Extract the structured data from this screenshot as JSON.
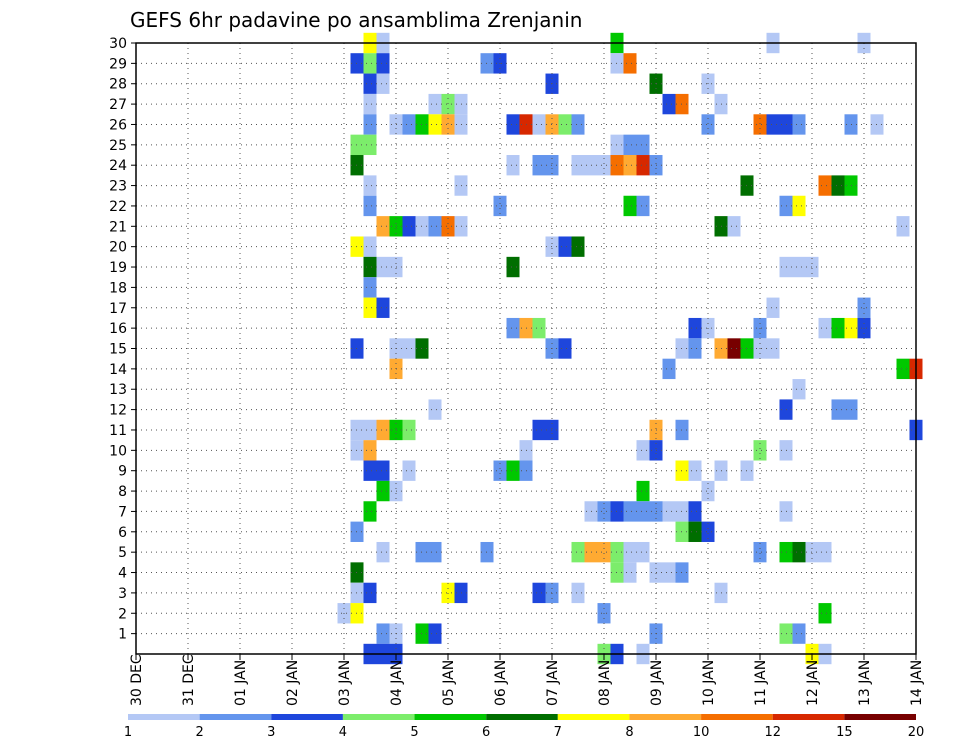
{
  "chart_data": {
    "type": "heatmap",
    "title": "GEFS 6hr padavine po ansamblima Zrenjanin",
    "xlabel": "",
    "ylabel": "",
    "x_tick_labels": [
      "30 DEC",
      "31 DEC",
      "01 JAN",
      "02 JAN",
      "03 JAN",
      "04 JAN",
      "05 JAN",
      "06 JAN",
      "07 JAN",
      "08 JAN",
      "09 JAN",
      "10 JAN",
      "11 JAN",
      "12 JAN",
      "13 JAN",
      "14 JAN"
    ],
    "y_tick_labels": [
      "1",
      "2",
      "3",
      "4",
      "5",
      "6",
      "7",
      "8",
      "9",
      "10",
      "11",
      "12",
      "13",
      "14",
      "15",
      "16",
      "17",
      "18",
      "19",
      "20",
      "21",
      "22",
      "23",
      "24",
      "25",
      "26",
      "27",
      "28",
      "29",
      "30"
    ],
    "x_range": [
      0,
      60
    ],
    "y_range": [
      0,
      30
    ],
    "x_unit": "6h step from 30 DEC 00Z",
    "grid": true,
    "legend": {
      "placement": "bottom",
      "levels": [
        "1",
        "2",
        "3",
        "4",
        "5",
        "6",
        "7",
        "8",
        "10",
        "12",
        "15",
        "20"
      ],
      "colors": [
        "#b4c8f5",
        "#6495ed",
        "#1e46dc",
        "#7ced6b",
        "#00c800",
        "#006e00",
        "#ffff00",
        "#ffaa32",
        "#f56e00",
        "#d72800",
        "#780000"
      ]
    },
    "cells_format": "[x_step, member, class_index]",
    "cells": [
      [
        18,
        30,
        6
      ],
      [
        19,
        30,
        0
      ],
      [
        37,
        30,
        4
      ],
      [
        49,
        30,
        0
      ],
      [
        56,
        30,
        0
      ],
      [
        17,
        29,
        2
      ],
      [
        18,
        29,
        3
      ],
      [
        19,
        29,
        2
      ],
      [
        27,
        29,
        1
      ],
      [
        28,
        29,
        2
      ],
      [
        37,
        29,
        0
      ],
      [
        38,
        29,
        8
      ],
      [
        18,
        28,
        2
      ],
      [
        19,
        28,
        0
      ],
      [
        32,
        28,
        2
      ],
      [
        40,
        28,
        5
      ],
      [
        44,
        28,
        0
      ],
      [
        18,
        27,
        0
      ],
      [
        23,
        27,
        0
      ],
      [
        24,
        27,
        3
      ],
      [
        25,
        27,
        0
      ],
      [
        41,
        27,
        2
      ],
      [
        42,
        27,
        8
      ],
      [
        45,
        27,
        0
      ],
      [
        18,
        26,
        1
      ],
      [
        20,
        26,
        0
      ],
      [
        21,
        26,
        1
      ],
      [
        22,
        26,
        4
      ],
      [
        23,
        26,
        6
      ],
      [
        24,
        26,
        7
      ],
      [
        25,
        26,
        0
      ],
      [
        29,
        26,
        2
      ],
      [
        30,
        26,
        9
      ],
      [
        31,
        26,
        0
      ],
      [
        32,
        26,
        7
      ],
      [
        33,
        26,
        3
      ],
      [
        34,
        26,
        1
      ],
      [
        44,
        26,
        1
      ],
      [
        48,
        26,
        8
      ],
      [
        49,
        26,
        2
      ],
      [
        50,
        26,
        2
      ],
      [
        51,
        26,
        1
      ],
      [
        55,
        26,
        1
      ],
      [
        57,
        26,
        0
      ],
      [
        17,
        25,
        3
      ],
      [
        18,
        25,
        3
      ],
      [
        37,
        25,
        0
      ],
      [
        38,
        25,
        1
      ],
      [
        39,
        25,
        1
      ],
      [
        17,
        24,
        5
      ],
      [
        29,
        24,
        0
      ],
      [
        31,
        24,
        1
      ],
      [
        32,
        24,
        1
      ],
      [
        34,
        24,
        0
      ],
      [
        35,
        24,
        0
      ],
      [
        36,
        24,
        0
      ],
      [
        37,
        24,
        8
      ],
      [
        38,
        24,
        7
      ],
      [
        39,
        24,
        9
      ],
      [
        40,
        24,
        1
      ],
      [
        18,
        23,
        0
      ],
      [
        25,
        23,
        0
      ],
      [
        47,
        23,
        5
      ],
      [
        53,
        23,
        8
      ],
      [
        54,
        23,
        5
      ],
      [
        55,
        23,
        4
      ],
      [
        18,
        22,
        1
      ],
      [
        28,
        22,
        1
      ],
      [
        38,
        22,
        4
      ],
      [
        39,
        22,
        1
      ],
      [
        50,
        22,
        1
      ],
      [
        51,
        22,
        6
      ],
      [
        19,
        21,
        7
      ],
      [
        20,
        21,
        4
      ],
      [
        21,
        21,
        2
      ],
      [
        22,
        21,
        0
      ],
      [
        23,
        21,
        1
      ],
      [
        24,
        21,
        8
      ],
      [
        25,
        21,
        0
      ],
      [
        45,
        21,
        5
      ],
      [
        46,
        21,
        0
      ],
      [
        59,
        21,
        0
      ],
      [
        17,
        20,
        6
      ],
      [
        18,
        20,
        0
      ],
      [
        32,
        20,
        0
      ],
      [
        33,
        20,
        2
      ],
      [
        34,
        20,
        5
      ],
      [
        18,
        19,
        5
      ],
      [
        19,
        19,
        0
      ],
      [
        20,
        19,
        0
      ],
      [
        29,
        19,
        5
      ],
      [
        50,
        19,
        0
      ],
      [
        51,
        19,
        0
      ],
      [
        52,
        19,
        0
      ],
      [
        18,
        18,
        1
      ],
      [
        18,
        17,
        6
      ],
      [
        19,
        17,
        2
      ],
      [
        49,
        17,
        0
      ],
      [
        56,
        17,
        1
      ],
      [
        29,
        16,
        1
      ],
      [
        30,
        16,
        7
      ],
      [
        31,
        16,
        3
      ],
      [
        43,
        16,
        2
      ],
      [
        44,
        16,
        0
      ],
      [
        48,
        16,
        1
      ],
      [
        53,
        16,
        0
      ],
      [
        54,
        16,
        4
      ],
      [
        55,
        16,
        6
      ],
      [
        56,
        16,
        2
      ],
      [
        17,
        15,
        2
      ],
      [
        20,
        15,
        0
      ],
      [
        21,
        15,
        0
      ],
      [
        22,
        15,
        5
      ],
      [
        32,
        15,
        1
      ],
      [
        33,
        15,
        2
      ],
      [
        42,
        15,
        0
      ],
      [
        43,
        15,
        1
      ],
      [
        45,
        15,
        7
      ],
      [
        46,
        15,
        10
      ],
      [
        47,
        15,
        4
      ],
      [
        48,
        15,
        0
      ],
      [
        49,
        15,
        0
      ],
      [
        20,
        14,
        7
      ],
      [
        41,
        14,
        1
      ],
      [
        59,
        14,
        4
      ],
      [
        60,
        14,
        9
      ],
      [
        51,
        13,
        0
      ],
      [
        23,
        12,
        0
      ],
      [
        50,
        12,
        2
      ],
      [
        54,
        12,
        1
      ],
      [
        55,
        12,
        1
      ],
      [
        17,
        11,
        0
      ],
      [
        18,
        11,
        0
      ],
      [
        19,
        11,
        7
      ],
      [
        20,
        11,
        4
      ],
      [
        21,
        11,
        3
      ],
      [
        31,
        11,
        2
      ],
      [
        32,
        11,
        2
      ],
      [
        40,
        11,
        7
      ],
      [
        42,
        11,
        1
      ],
      [
        60,
        11,
        2
      ],
      [
        17,
        10,
        0
      ],
      [
        18,
        10,
        7
      ],
      [
        30,
        10,
        0
      ],
      [
        39,
        10,
        0
      ],
      [
        40,
        10,
        2
      ],
      [
        48,
        10,
        3
      ],
      [
        50,
        10,
        0
      ],
      [
        18,
        9,
        2
      ],
      [
        19,
        9,
        2
      ],
      [
        21,
        9,
        0
      ],
      [
        28,
        9,
        1
      ],
      [
        29,
        9,
        4
      ],
      [
        30,
        9,
        1
      ],
      [
        42,
        9,
        6
      ],
      [
        43,
        9,
        0
      ],
      [
        45,
        9,
        0
      ],
      [
        47,
        9,
        0
      ],
      [
        19,
        8,
        4
      ],
      [
        20,
        8,
        0
      ],
      [
        39,
        8,
        4
      ],
      [
        44,
        8,
        0
      ],
      [
        18,
        7,
        4
      ],
      [
        35,
        7,
        0
      ],
      [
        36,
        7,
        1
      ],
      [
        37,
        7,
        2
      ],
      [
        38,
        7,
        1
      ],
      [
        39,
        7,
        1
      ],
      [
        40,
        7,
        1
      ],
      [
        41,
        7,
        0
      ],
      [
        42,
        7,
        0
      ],
      [
        43,
        7,
        2
      ],
      [
        50,
        7,
        0
      ],
      [
        17,
        6,
        1
      ],
      [
        42,
        6,
        3
      ],
      [
        43,
        6,
        5
      ],
      [
        44,
        6,
        2
      ],
      [
        19,
        5,
        0
      ],
      [
        22,
        5,
        1
      ],
      [
        23,
        5,
        1
      ],
      [
        27,
        5,
        1
      ],
      [
        34,
        5,
        3
      ],
      [
        35,
        5,
        7
      ],
      [
        36,
        5,
        7
      ],
      [
        37,
        5,
        3
      ],
      [
        38,
        5,
        0
      ],
      [
        39,
        5,
        0
      ],
      [
        48,
        5,
        1
      ],
      [
        50,
        5,
        4
      ],
      [
        51,
        5,
        5
      ],
      [
        52,
        5,
        0
      ],
      [
        53,
        5,
        0
      ],
      [
        17,
        4,
        5
      ],
      [
        37,
        4,
        3
      ],
      [
        38,
        4,
        0
      ],
      [
        40,
        4,
        0
      ],
      [
        41,
        4,
        0
      ],
      [
        42,
        4,
        1
      ],
      [
        17,
        3,
        0
      ],
      [
        18,
        3,
        2
      ],
      [
        24,
        3,
        6
      ],
      [
        25,
        3,
        2
      ],
      [
        31,
        3,
        2
      ],
      [
        32,
        3,
        1
      ],
      [
        34,
        3,
        0
      ],
      [
        45,
        3,
        0
      ],
      [
        16,
        2,
        0
      ],
      [
        17,
        2,
        6
      ],
      [
        36,
        2,
        1
      ],
      [
        53,
        2,
        4
      ],
      [
        19,
        1,
        1
      ],
      [
        20,
        1,
        0
      ],
      [
        22,
        1,
        4
      ],
      [
        23,
        1,
        2
      ],
      [
        40,
        1,
        1
      ],
      [
        50,
        1,
        3
      ],
      [
        51,
        1,
        1
      ],
      [
        18,
        0,
        2
      ],
      [
        19,
        0,
        2
      ],
      [
        20,
        0,
        2
      ],
      [
        36,
        0,
        3
      ],
      [
        37,
        0,
        2
      ],
      [
        39,
        0,
        0
      ],
      [
        52,
        0,
        6
      ],
      [
        53,
        0,
        0
      ]
    ]
  }
}
